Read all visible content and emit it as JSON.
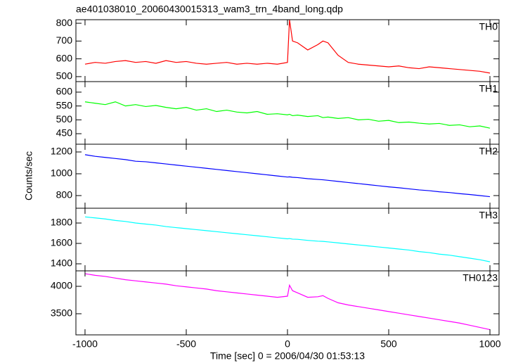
{
  "title": "ae401038010_20060430015313_wam3_trn_4band_long.qdp",
  "ylabel": "Counts/sec",
  "xlabel": "Time [sec] 0 = 2006/04/30 01:53:13",
  "chart_data": [
    {
      "type": "line",
      "x": [
        -1000,
        -950,
        -900,
        -850,
        -800,
        -750,
        -700,
        -650,
        -600,
        -550,
        -500,
        -450,
        -400,
        -350,
        -300,
        -250,
        -200,
        -150,
        -100,
        -50,
        0,
        10,
        25,
        50,
        100,
        150,
        175,
        200,
        250,
        300,
        350,
        400,
        450,
        500,
        550,
        600,
        650,
        700,
        750,
        800,
        850,
        900,
        950,
        1000
      ],
      "series": [
        {
          "name": "TH0",
          "color": "#ff0000",
          "values": [
            570,
            580,
            575,
            585,
            590,
            580,
            585,
            575,
            590,
            580,
            585,
            575,
            570,
            575,
            580,
            570,
            575,
            570,
            575,
            570,
            580,
            820,
            700,
            690,
            650,
            680,
            700,
            690,
            620,
            580,
            570,
            565,
            560,
            555,
            560,
            550,
            545,
            555,
            550,
            545,
            540,
            535,
            530,
            520
          ]
        }
      ],
      "xlim": [
        -1045,
        1045
      ],
      "xticks": [
        -1000,
        -500,
        0,
        500,
        1000
      ],
      "ylim": [
        472,
        820
      ],
      "yticks": [
        500,
        600,
        700,
        800
      ]
    },
    {
      "type": "line",
      "x": [
        -1000,
        -950,
        -900,
        -850,
        -800,
        -750,
        -700,
        -650,
        -600,
        -550,
        -500,
        -450,
        -400,
        -350,
        -300,
        -250,
        -200,
        -150,
        -100,
        -50,
        0,
        10,
        25,
        50,
        100,
        150,
        175,
        200,
        250,
        300,
        350,
        400,
        450,
        500,
        550,
        600,
        650,
        700,
        750,
        800,
        850,
        900,
        950,
        1000
      ],
      "series": [
        {
          "name": "TH1",
          "color": "#00ff00",
          "values": [
            565,
            560,
            555,
            565,
            550,
            555,
            548,
            552,
            545,
            540,
            545,
            535,
            540,
            530,
            535,
            528,
            525,
            530,
            520,
            522,
            518,
            520,
            515,
            517,
            512,
            515,
            508,
            510,
            505,
            508,
            500,
            502,
            495,
            498,
            490,
            492,
            488,
            485,
            487,
            480,
            482,
            475,
            478,
            470
          ]
        }
      ],
      "xlim": [
        -1045,
        1045
      ],
      "xticks": [
        -1000,
        -500,
        0,
        500,
        1000
      ],
      "ylim": [
        412,
        638
      ],
      "yticks": [
        450,
        500,
        550,
        600
      ]
    },
    {
      "type": "line",
      "x": [
        -1000,
        -950,
        -900,
        -850,
        -800,
        -750,
        -700,
        -650,
        -600,
        -550,
        -500,
        -450,
        -400,
        -350,
        -300,
        -250,
        -200,
        -150,
        -100,
        -50,
        0,
        10,
        25,
        50,
        100,
        150,
        175,
        200,
        250,
        300,
        350,
        400,
        450,
        500,
        550,
        600,
        650,
        700,
        750,
        800,
        850,
        900,
        950,
        1000
      ],
      "series": [
        {
          "name": "TH2",
          "color": "#0000ff",
          "values": [
            1175,
            1160,
            1150,
            1140,
            1130,
            1115,
            1110,
            1100,
            1090,
            1080,
            1070,
            1060,
            1050,
            1040,
            1030,
            1020,
            1010,
            1000,
            990,
            980,
            970,
            972,
            968,
            965,
            955,
            948,
            945,
            940,
            930,
            920,
            910,
            900,
            890,
            880,
            872,
            862,
            852,
            845,
            835,
            828,
            818,
            810,
            800,
            790
          ]
        }
      ],
      "xlim": [
        -1045,
        1045
      ],
      "xticks": [
        -1000,
        -500,
        0,
        500,
        1000
      ],
      "ylim": [
        684,
        1271
      ],
      "yticks": [
        800,
        1000,
        1200
      ]
    },
    {
      "type": "line",
      "x": [
        -1000,
        -950,
        -900,
        -850,
        -800,
        -750,
        -700,
        -650,
        -600,
        -550,
        -500,
        -450,
        -400,
        -350,
        -300,
        -250,
        -200,
        -150,
        -100,
        -50,
        0,
        10,
        25,
        50,
        100,
        150,
        175,
        200,
        250,
        300,
        350,
        400,
        450,
        500,
        550,
        600,
        650,
        700,
        750,
        800,
        850,
        900,
        950,
        1000
      ],
      "series": [
        {
          "name": "TH3",
          "color": "#00ffff",
          "values": [
            1860,
            1850,
            1840,
            1825,
            1815,
            1800,
            1790,
            1780,
            1765,
            1755,
            1745,
            1735,
            1725,
            1715,
            1705,
            1695,
            1685,
            1675,
            1665,
            1655,
            1645,
            1648,
            1642,
            1640,
            1630,
            1622,
            1620,
            1615,
            1605,
            1595,
            1585,
            1575,
            1565,
            1555,
            1545,
            1535,
            1520,
            1510,
            1495,
            1485,
            1470,
            1455,
            1440,
            1420
          ]
        }
      ],
      "xlim": [
        -1045,
        1045
      ],
      "xticks": [
        -1000,
        -500,
        0,
        500,
        1000
      ],
      "ylim": [
        1331,
        1945
      ],
      "yticks": [
        1400,
        1600,
        1800
      ]
    },
    {
      "type": "line",
      "x": [
        -1000,
        -950,
        -900,
        -850,
        -800,
        -750,
        -700,
        -650,
        -600,
        -550,
        -500,
        -450,
        -400,
        -350,
        -300,
        -250,
        -200,
        -150,
        -100,
        -50,
        0,
        10,
        25,
        50,
        100,
        150,
        175,
        200,
        250,
        300,
        350,
        400,
        450,
        500,
        550,
        600,
        650,
        700,
        750,
        800,
        850,
        900,
        950,
        1000
      ],
      "series": [
        {
          "name": "TH0123",
          "color": "#ff00ff",
          "values": [
            4230,
            4200,
            4180,
            4150,
            4120,
            4100,
            4080,
            4060,
            4040,
            4010,
            3990,
            3970,
            3950,
            3920,
            3900,
            3880,
            3860,
            3840,
            3820,
            3800,
            3820,
            4020,
            3920,
            3880,
            3800,
            3810,
            3830,
            3780,
            3700,
            3660,
            3630,
            3600,
            3570,
            3540,
            3510,
            3480,
            3450,
            3420,
            3390,
            3360,
            3330,
            3290,
            3250,
            3210
          ]
        }
      ],
      "xlim": [
        -1045,
        1045
      ],
      "xticks": [
        -1000,
        -500,
        0,
        500,
        1000
      ],
      "ylim": [
        3115,
        4282
      ],
      "yticks": [
        3500,
        4000
      ]
    }
  ]
}
